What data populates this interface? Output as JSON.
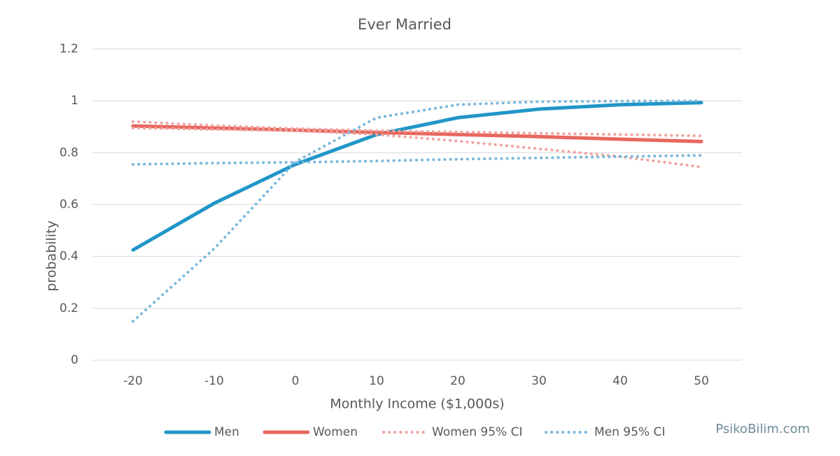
{
  "chart_data": {
    "type": "line",
    "title": "Ever  Married",
    "x_label": "Monthly Income ($1,000s)",
    "y_label": "probability",
    "x": [
      -20,
      -10,
      0,
      10,
      20,
      30,
      40,
      50
    ],
    "xlim": [
      -25,
      55
    ],
    "xticks": [
      -20,
      -10,
      0,
      10,
      20,
      30,
      40,
      50
    ],
    "ylim": [
      0,
      1.2
    ],
    "yticks": [
      0,
      0.2,
      0.4,
      0.6,
      0.8,
      1,
      1.2
    ],
    "grid": true,
    "legend": "bottom",
    "series": [
      {
        "name": "Men",
        "color": "#2196c8",
        "values": [
          0.425,
          0.605,
          0.755,
          0.87,
          0.935,
          0.968,
          0.985,
          0.993
        ]
      },
      {
        "name": "Women",
        "color": "#e8675e",
        "values": [
          0.903,
          0.895,
          0.887,
          0.878,
          0.87,
          0.862,
          0.852,
          0.843
        ]
      },
      {
        "name": "Women 95% CI",
        "color": "#f0a3a0",
        "dotted": true,
        "bounds": [
          [
            0.92,
            0.905,
            0.893,
            0.885,
            0.88,
            0.875,
            0.87,
            0.865
          ],
          [
            0.895,
            0.89,
            0.885,
            0.87,
            0.845,
            0.815,
            0.785,
            0.745
          ]
        ]
      },
      {
        "name": "Men 95% CI",
        "color": "#7ab8db",
        "dotted": true,
        "bounds": [
          [
            0.15,
            0.43,
            0.765,
            0.935,
            0.985,
            0.997,
            0.999,
            1.0
          ],
          [
            0.755,
            0.76,
            0.763,
            0.768,
            0.775,
            0.78,
            0.785,
            0.79
          ]
        ]
      }
    ]
  },
  "watermark": "PsikoBilim.com"
}
